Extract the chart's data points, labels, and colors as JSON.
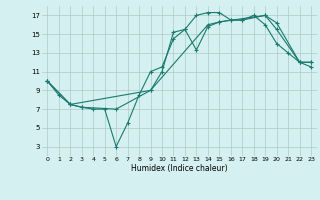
{
  "xlabel": "Humidex (Indice chaleur)",
  "background_color": "#d4f0f0",
  "grid_color": "#b0c8c8",
  "line_color": "#1a7a6e",
  "xlim": [
    -0.5,
    23.5
  ],
  "ylim": [
    2.0,
    18.0
  ],
  "xticks": [
    0,
    1,
    2,
    3,
    4,
    5,
    6,
    7,
    8,
    9,
    10,
    11,
    12,
    13,
    14,
    15,
    16,
    17,
    18,
    19,
    20,
    21,
    22,
    23
  ],
  "yticks": [
    3,
    5,
    7,
    9,
    11,
    13,
    15,
    17
  ],
  "line1_x": [
    0,
    1,
    2,
    3,
    4,
    5,
    6,
    7,
    8,
    9,
    10,
    11,
    12,
    13,
    14,
    15,
    16,
    17,
    18,
    19,
    20,
    21,
    22,
    23
  ],
  "line1_y": [
    10.0,
    8.5,
    7.5,
    7.2,
    7.0,
    7.0,
    3.0,
    5.5,
    8.5,
    11.0,
    11.5,
    14.5,
    15.5,
    17.0,
    17.3,
    17.3,
    16.5,
    16.5,
    17.0,
    16.0,
    14.0,
    13.0,
    12.0,
    11.5
  ],
  "line2_x": [
    0,
    2,
    3,
    6,
    9,
    10,
    11,
    12,
    13,
    14,
    15,
    16,
    17,
    19,
    20,
    22,
    23
  ],
  "line2_y": [
    10.0,
    7.5,
    7.2,
    7.0,
    9.0,
    11.0,
    15.2,
    15.5,
    13.3,
    15.8,
    16.3,
    16.5,
    16.5,
    17.0,
    16.2,
    12.0,
    12.0
  ],
  "line3_x": [
    0,
    2,
    9,
    14,
    15,
    19,
    20,
    22,
    23
  ],
  "line3_y": [
    10.0,
    7.5,
    9.0,
    16.0,
    16.3,
    17.0,
    15.5,
    12.0,
    12.0
  ]
}
